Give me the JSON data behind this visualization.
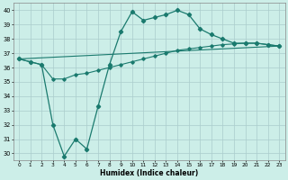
{
  "xlabel": "Humidex (Indice chaleur)",
  "background_color": "#cceee8",
  "grid_color": "#aacccc",
  "line_color": "#1a7a6e",
  "xlim": [
    -0.5,
    23.5
  ],
  "ylim": [
    29.5,
    40.5
  ],
  "xticks": [
    0,
    1,
    2,
    3,
    4,
    5,
    6,
    7,
    8,
    9,
    10,
    11,
    12,
    13,
    14,
    15,
    16,
    17,
    18,
    19,
    20,
    21,
    22,
    23
  ],
  "yticks": [
    30,
    31,
    32,
    33,
    34,
    35,
    36,
    37,
    38,
    39,
    40
  ],
  "series1_x": [
    0,
    23
  ],
  "series1_y": [
    36.6,
    37.5
  ],
  "series2_x": [
    0,
    23
  ],
  "series2_y": [
    36.6,
    37.5
  ],
  "series3_x": [
    0,
    1,
    2,
    3,
    4,
    5,
    6,
    7,
    8,
    9,
    10,
    11,
    12,
    13,
    14,
    15,
    16,
    17,
    18,
    19,
    20,
    21,
    22,
    23
  ],
  "series3_y": [
    36.6,
    36.4,
    36.2,
    32.0,
    29.8,
    31.0,
    30.3,
    33.3,
    36.2,
    38.5,
    39.9,
    39.3,
    39.5,
    39.7,
    40.0,
    39.7,
    38.7,
    38.3,
    38.0,
    37.7,
    37.7,
    37.7,
    37.6,
    37.5
  ],
  "series4_x": [
    0,
    1,
    2,
    3,
    4,
    5,
    6,
    7,
    8,
    9,
    10,
    11,
    12,
    13,
    14,
    15,
    16,
    17,
    18,
    19,
    20,
    21,
    22,
    23
  ],
  "series4_y": [
    36.6,
    36.4,
    36.2,
    35.2,
    35.2,
    35.5,
    35.6,
    35.8,
    36.0,
    36.2,
    36.4,
    36.6,
    36.8,
    37.0,
    37.2,
    37.3,
    37.4,
    37.5,
    37.6,
    37.65,
    37.7,
    37.7,
    37.6,
    37.5
  ]
}
